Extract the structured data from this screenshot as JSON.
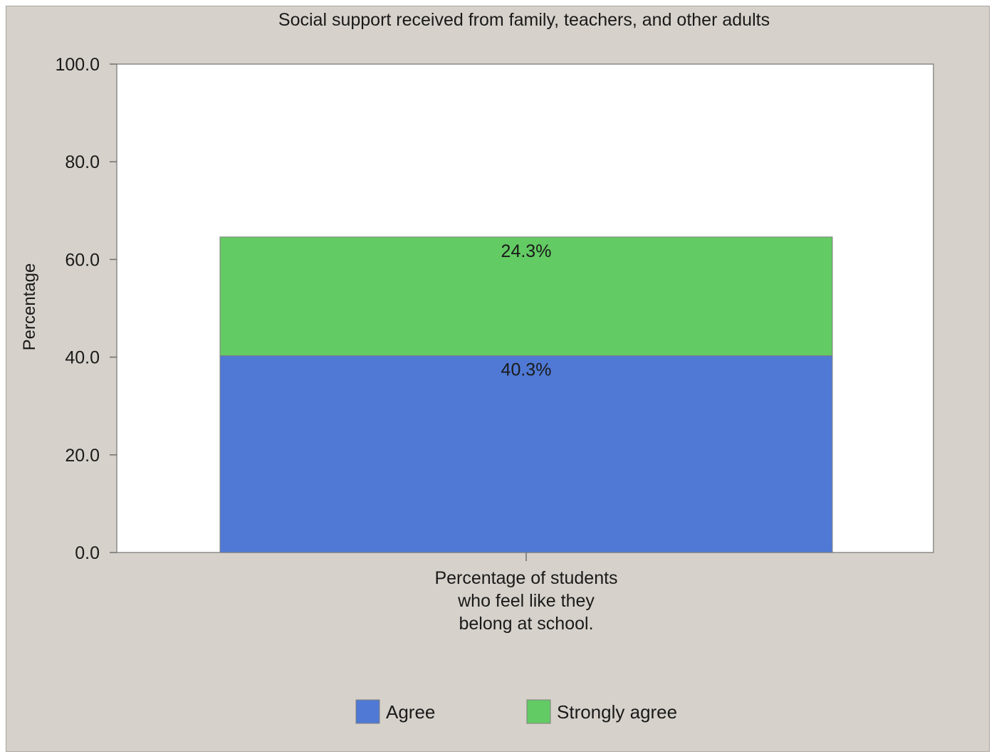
{
  "chart_data": {
    "type": "bar",
    "stacked": true,
    "title": "Social support received from family, teachers, and other adults",
    "ylabel": "Percentage",
    "xlabel": "",
    "categories": [
      "Percentage of students who feel like they belong at school."
    ],
    "category_label_lines": [
      "Percentage of students",
      "who feel like they",
      "belong at school."
    ],
    "series": [
      {
        "name": "Agree",
        "values": [
          40.3
        ],
        "label": "40.3%",
        "color": "#4f79d4"
      },
      {
        "name": "Strongly agree",
        "values": [
          24.3
        ],
        "label": "24.3%",
        "color": "#63cb63"
      }
    ],
    "ylim": [
      0,
      100
    ],
    "yticks": [
      0,
      20,
      40,
      60,
      80,
      100
    ],
    "ytick_labels": [
      "0.0",
      "20.0",
      "40.0",
      "60.0",
      "80.0",
      "100.0"
    ],
    "grid": false,
    "legend": {
      "position": "bottom"
    }
  },
  "colors": {
    "background": "#d6d2cb",
    "plot_area": "#ffffff"
  }
}
